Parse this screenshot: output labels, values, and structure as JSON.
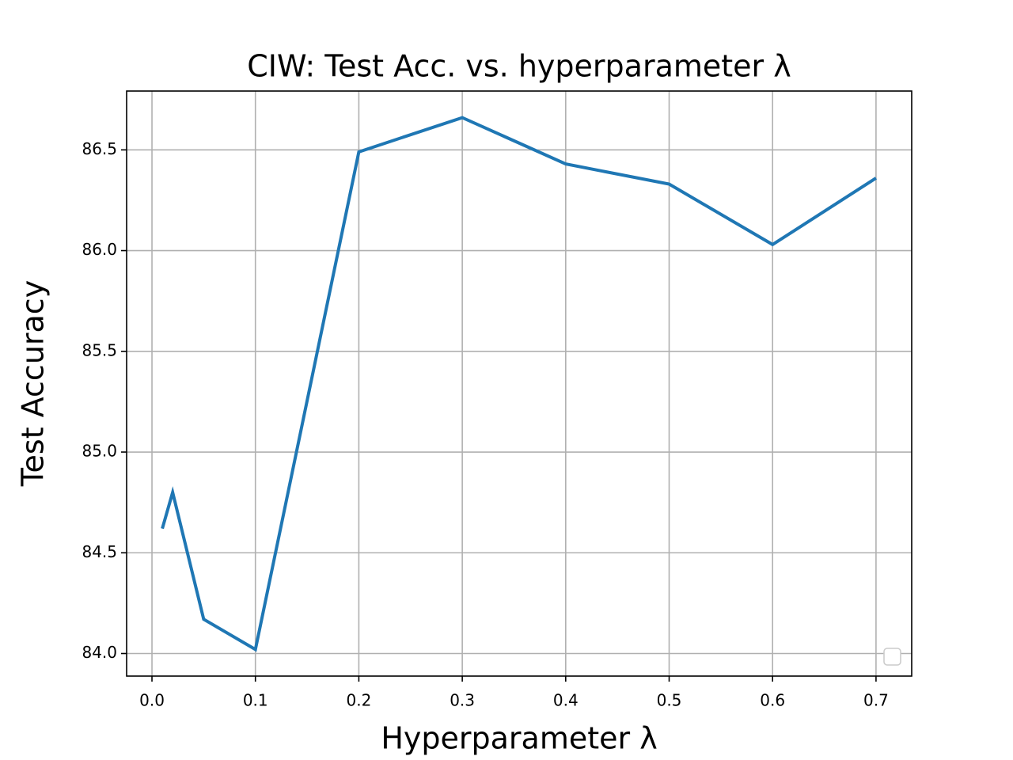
{
  "chart_data": {
    "type": "line",
    "title": "CIW: Test Acc. vs. hyperparameter λ",
    "x_label": "Hyperparameter λ",
    "y_label": "Test Accuracy",
    "x": [
      0.01,
      0.02,
      0.05,
      0.1,
      0.2,
      0.3,
      0.4,
      0.5,
      0.6,
      0.7
    ],
    "series": [
      {
        "color": "#1f77b4",
        "values": [
          84.62,
          84.8,
          84.17,
          84.02,
          86.49,
          86.66,
          86.43,
          86.33,
          86.03,
          86.36
        ]
      }
    ],
    "xlim": [
      -0.0245,
      0.7345
    ],
    "ylim": [
      83.888,
      86.792
    ],
    "xticks": [
      {
        "value": 0,
        "label": "0.0"
      },
      0.1,
      0.2,
      0.3,
      0.4,
      0.5,
      0.6,
      0.7
    ],
    "yticks": [
      {
        "value": 84,
        "label": "84.0"
      },
      84.5,
      {
        "value": 85,
        "label": "85.0"
      },
      85.5,
      {
        "value": 86,
        "label": "86.0"
      },
      86.5
    ],
    "grid": true
  }
}
